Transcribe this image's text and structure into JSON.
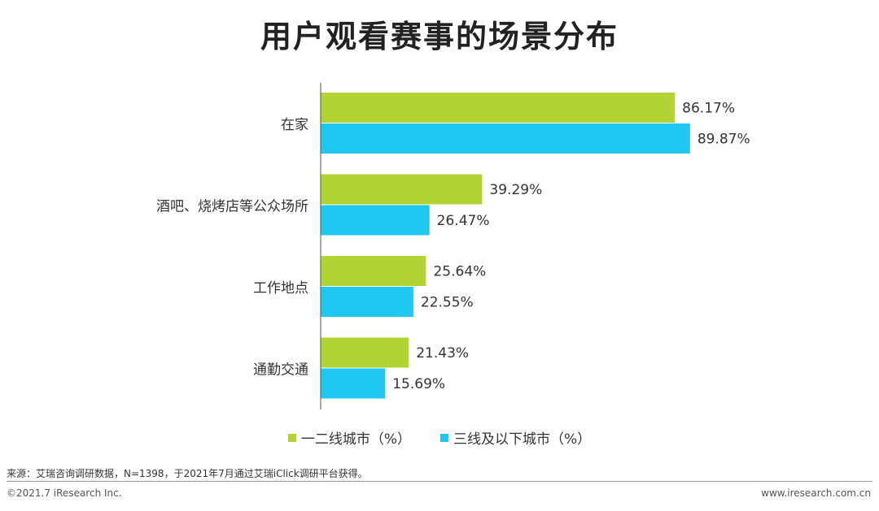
{
  "title": "用户观看赛事的场景分布",
  "chart_data": {
    "type": "bar",
    "orientation": "horizontal",
    "categories": [
      "在家",
      "酒吧、烧烤店等公众场所",
      "工作地点",
      "通勤交通"
    ],
    "series": [
      {
        "name": "一二线城市（%）",
        "color": "#b3d334",
        "values": [
          86.17,
          39.29,
          25.64,
          21.43
        ]
      },
      {
        "name": "三线及以下城市（%）",
        "color": "#1ec8f0",
        "values": [
          89.87,
          26.47,
          22.55,
          15.69
        ]
      }
    ],
    "value_format": "%",
    "legend_position": "bottom",
    "grid": false
  },
  "source": "来源：艾瑞咨询调研数据，N=1398，于2021年7月通过艾瑞iClick调研平台获得。",
  "footer": {
    "copyright": "©2021.7 iResearch Inc.",
    "website": "www.iresearch.com.cn"
  }
}
